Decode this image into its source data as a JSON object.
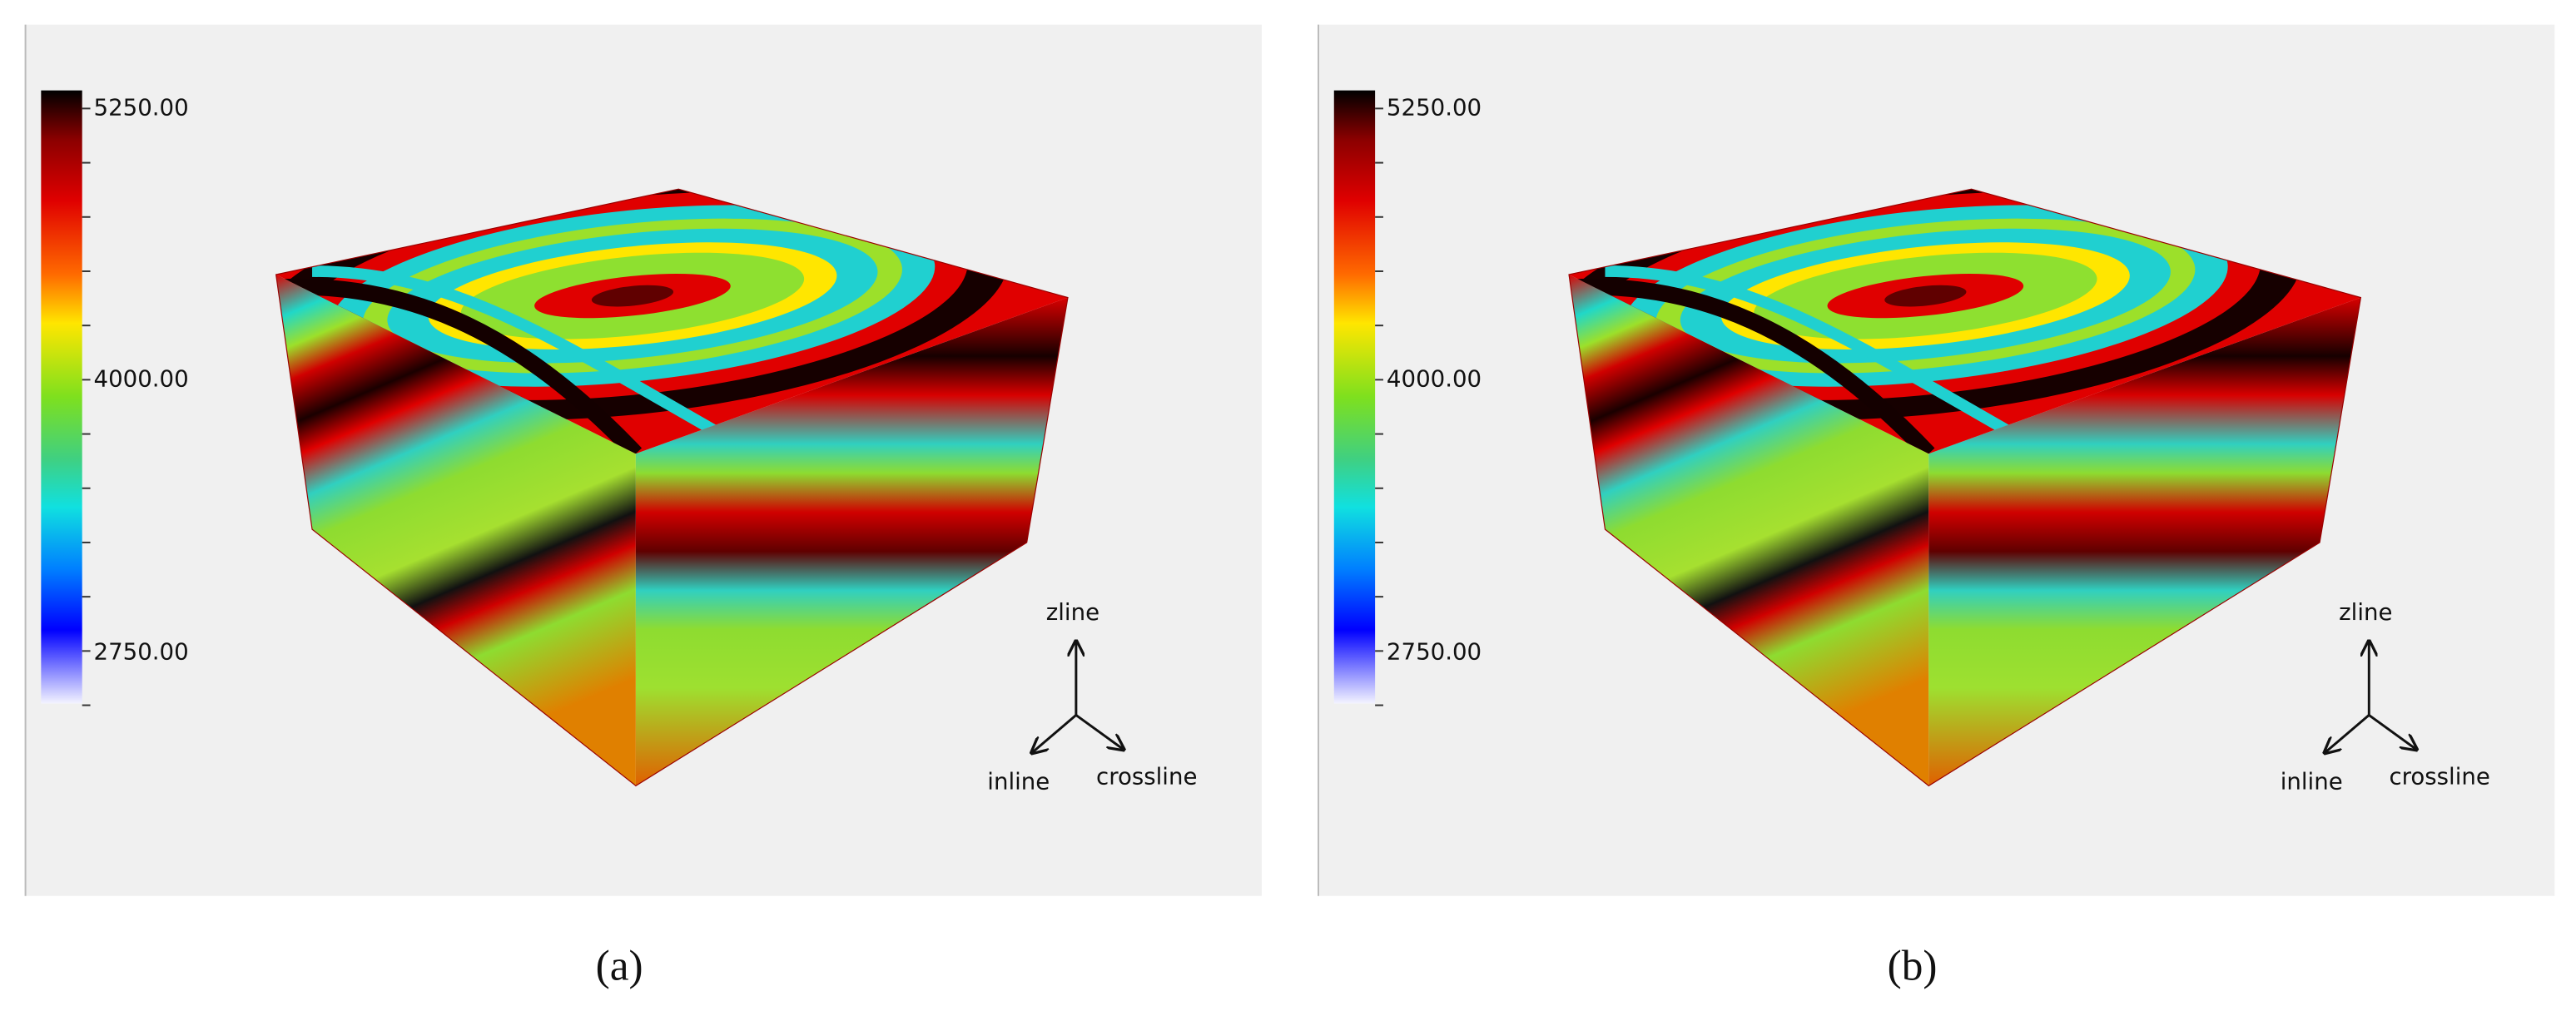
{
  "panels": [
    {
      "colorbar": {
        "labels": [
          "5250.00",
          "4000.00",
          "2750.00"
        ]
      },
      "axes": {
        "up": "zline",
        "left": "inline",
        "right": "crossline"
      },
      "caption": "(a)"
    },
    {
      "colorbar": {
        "labels": [
          "5250.00",
          "4000.00",
          "2750.00"
        ]
      },
      "axes": {
        "up": "zline",
        "left": "inline",
        "right": "crossline"
      },
      "caption": "(b)"
    }
  ]
}
